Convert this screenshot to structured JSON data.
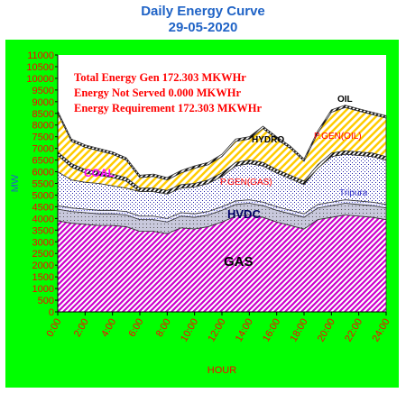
{
  "chart_data": {
    "type": "area",
    "title": "Daily Energy Curve",
    "subtitle": "29-05-2020",
    "xlabel": "HOUR",
    "ylabel": "MW",
    "ylim": [
      0,
      11000
    ],
    "yticks": [
      0,
      500,
      1000,
      1500,
      2000,
      2500,
      3000,
      3500,
      4000,
      4500,
      5000,
      5500,
      6000,
      6500,
      7000,
      7500,
      8000,
      8500,
      9000,
      9500,
      10000,
      10500,
      11000
    ],
    "xticks": [
      "0:00",
      "2:00",
      "4:00",
      "6:00",
      "8:00",
      "10:00",
      "12:00",
      "14:00",
      "16:00",
      "18:00",
      "20:00",
      "22:00",
      "24:00"
    ],
    "x": [
      0,
      1,
      2,
      3,
      4,
      5,
      6,
      7,
      8,
      9,
      10,
      11,
      12,
      13,
      14,
      15,
      16,
      17,
      18,
      19,
      20,
      21,
      22,
      23,
      24
    ],
    "stack_order_bottom_to_top": [
      "GAS",
      "HVDC",
      "Tripura",
      "P.GEN(GAS)",
      "COAL",
      "HYDRO",
      "P.GEN(OIL)",
      "OIL"
    ],
    "series": [
      {
        "name": "GAS",
        "color": "#cc00cc",
        "values": [
          3900,
          3800,
          3750,
          3700,
          3700,
          3650,
          3450,
          3450,
          3350,
          3600,
          3550,
          3650,
          3850,
          4100,
          4150,
          4050,
          3850,
          3700,
          3550,
          3950,
          4050,
          4150,
          4100,
          4050,
          3950
        ]
      },
      {
        "name": "HVDC",
        "color": "#333333",
        "values": [
          500,
          500,
          500,
          500,
          500,
          500,
          500,
          500,
          500,
          500,
          500,
          500,
          500,
          500,
          500,
          500,
          500,
          500,
          500,
          500,
          500,
          500,
          500,
          500,
          500
        ]
      },
      {
        "name": "Tripura",
        "color": "#9999ff",
        "values": [
          150,
          150,
          150,
          150,
          150,
          150,
          150,
          150,
          150,
          150,
          150,
          150,
          150,
          150,
          150,
          150,
          150,
          150,
          150,
          150,
          150,
          150,
          150,
          150,
          150
        ]
      },
      {
        "name": "P.GEN(GAS)",
        "color": "#3333cc",
        "values": [
          1450,
          1200,
          1150,
          1150,
          1050,
          1000,
          1050,
          1050,
          1050,
          1050,
          1150,
          1200,
          1300,
          1500,
          1550,
          1550,
          1450,
          1350,
          1250,
          1550,
          1950,
          1950,
          1950,
          1950,
          1900
        ]
      },
      {
        "name": "COAL",
        "color": "#ffcc00",
        "values": [
          700,
          550,
          400,
          350,
          350,
          300,
          0,
          0,
          0,
          0,
          0,
          0,
          0,
          0,
          0,
          0,
          0,
          0,
          0,
          0,
          0,
          0,
          0,
          0,
          0
        ]
      },
      {
        "name": "HYDRO",
        "color": "#000000",
        "values": [
          150,
          150,
          150,
          150,
          150,
          150,
          150,
          150,
          150,
          150,
          150,
          150,
          150,
          150,
          150,
          150,
          150,
          150,
          150,
          150,
          150,
          150,
          150,
          150,
          150
        ]
      },
      {
        "name": "P.GEN(OIL)",
        "color": "#ffcc00",
        "values": [
          1650,
          950,
          950,
          900,
          850,
          750,
          450,
          500,
          450,
          500,
          650,
          650,
          700,
          900,
          900,
          1450,
          1300,
          1150,
          850,
          1350,
          1750,
          1850,
          1750,
          1650,
          1650
        ]
      },
      {
        "name": "OIL",
        "color": "#000000",
        "values": [
          100,
          100,
          100,
          100,
          100,
          100,
          100,
          100,
          100,
          100,
          100,
          100,
          100,
          100,
          100,
          100,
          100,
          100,
          100,
          100,
          100,
          100,
          100,
          100,
          100
        ]
      }
    ],
    "annotations": {
      "total_gen": "Total Energy Gen 172.303 MKWHr",
      "not_served": "Energy Not Served  0.000 MKWHr",
      "requirement": "Energy Requirement      172.303 MKWHr",
      "label_oil": "OIL",
      "label_hydro": "HYDRO",
      "label_pgen_oil": "P.GEN(OIL)",
      "label_coal": "COAL",
      "label_pgen_gas": "P.GEN(GAS)",
      "label_tripura": "Tripura",
      "label_hvdc": "HVDC",
      "label_gas": "GAS"
    },
    "colors": {
      "frame": "#00ff00",
      "plot_bg": "#ffffff",
      "title": "#1f63c6",
      "axis_text": "#ff0000",
      "annotation_text": "#ff0000"
    },
    "grid": false,
    "legend": "none"
  }
}
